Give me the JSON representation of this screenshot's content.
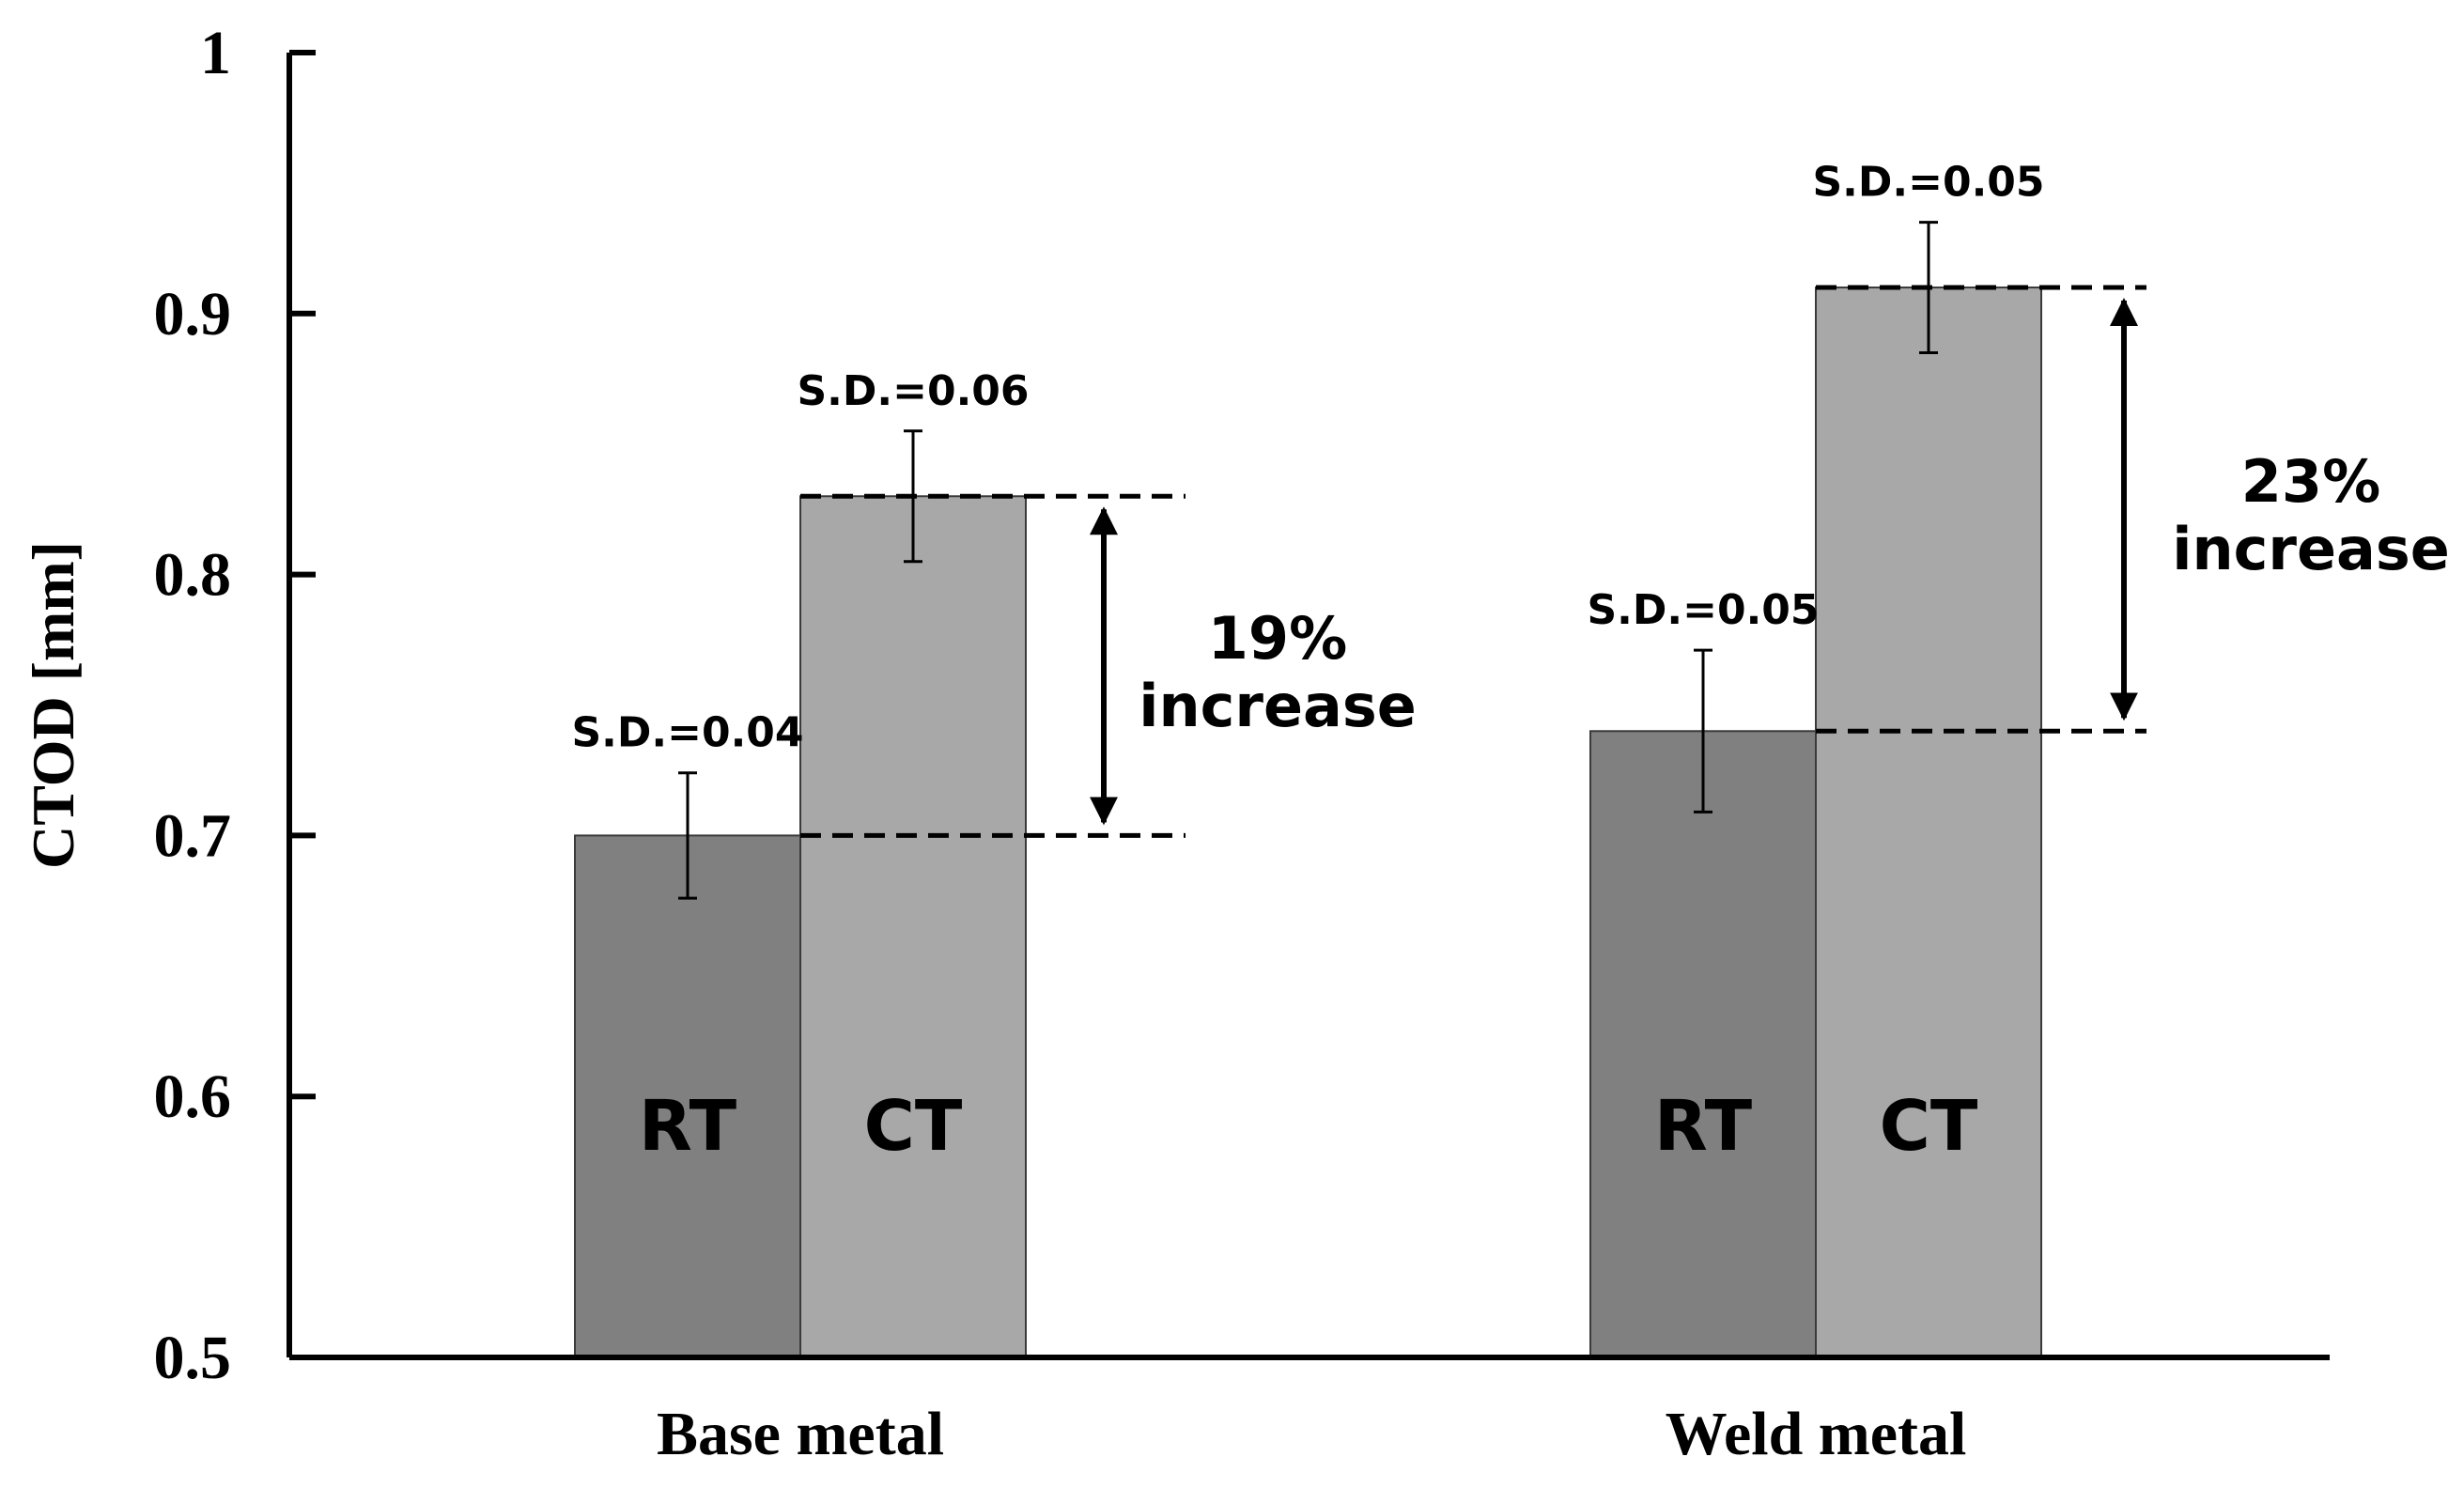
{
  "chart_data": {
    "type": "bar",
    "title": "",
    "xlabel": "",
    "ylabel": "CTOD [mm]",
    "ylim": [
      0.5,
      1.0
    ],
    "yticks": [
      0.5,
      0.6,
      0.7,
      0.8,
      0.9,
      1.0
    ],
    "ytick_labels": [
      "0.5",
      "0.6",
      "0.7",
      "0.8",
      "0.9",
      "1"
    ],
    "categories": [
      "Base metal",
      "Weld metal"
    ],
    "grid": false,
    "legend": "none",
    "series": [
      {
        "name": "RT",
        "color": "#808080",
        "values": [
          0.7,
          0.74
        ],
        "errors": [
          0.024,
          0.031
        ],
        "sd_labels": [
          "S.D.=0.04",
          "S.D.=0.05"
        ]
      },
      {
        "name": "CT",
        "color": "#a8a8a8",
        "values": [
          0.83,
          0.91
        ],
        "errors": [
          0.025,
          0.025
        ],
        "sd_labels": [
          "S.D.=0.06",
          "S.D.=0.05"
        ]
      }
    ],
    "annotations": [
      {
        "category": "Base metal",
        "from": 0.7,
        "to": 0.83,
        "line1": "19%",
        "line2": "increase"
      },
      {
        "category": "Weld metal",
        "from": 0.74,
        "to": 0.91,
        "line1": "23%",
        "line2": "increase"
      }
    ]
  }
}
